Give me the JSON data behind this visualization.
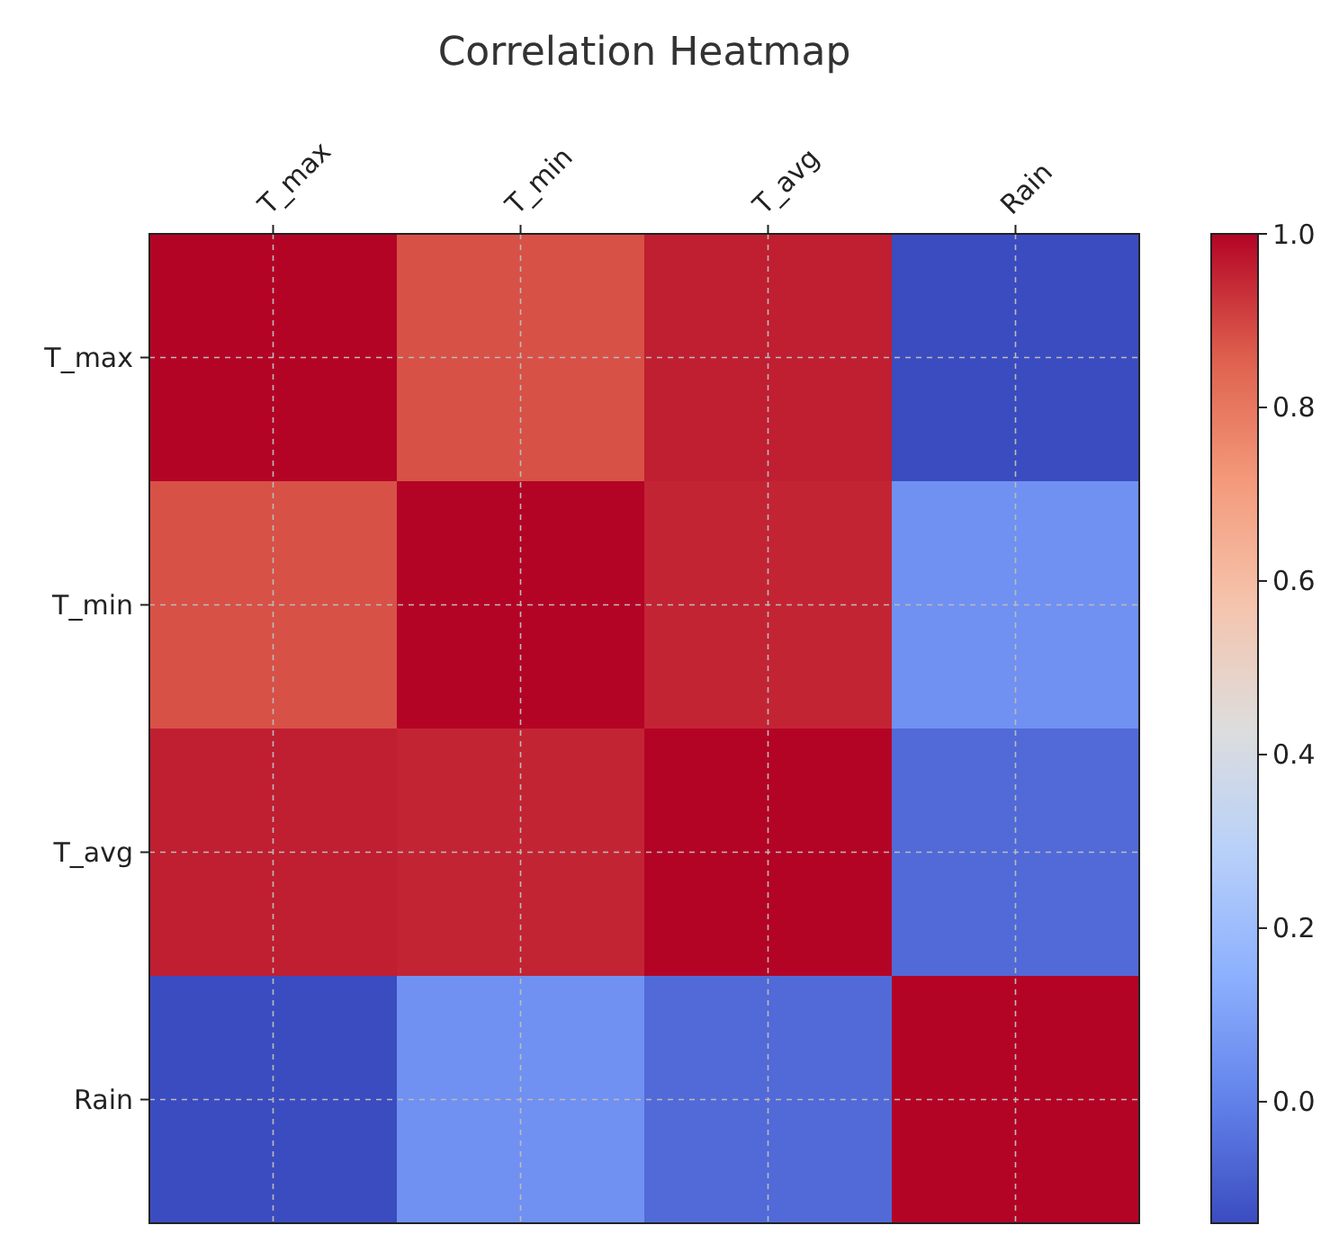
{
  "chart_data": {
    "type": "heatmap",
    "title": "Correlation Heatmap",
    "categories": [
      "T_max",
      "T_min",
      "T_avg",
      "Rain"
    ],
    "y_categories": [
      "T_max",
      "T_min",
      "T_avg",
      "Rain"
    ],
    "cells": [
      [
        1,
        0.88,
        0.96,
        -0.14
      ],
      [
        0.88,
        1,
        0.95,
        0.05
      ],
      [
        0.96,
        0.95,
        1,
        -0.06
      ],
      [
        -0.14,
        0.05,
        -0.06,
        1
      ]
    ],
    "clim": [
      -0.14,
      1
    ],
    "cticks": [
      {
        "value": 0,
        "label": "0.0"
      },
      0.2,
      0.4,
      0.6,
      0.8,
      {
        "value": 1,
        "label": "1.0"
      }
    ],
    "grid": true
  }
}
